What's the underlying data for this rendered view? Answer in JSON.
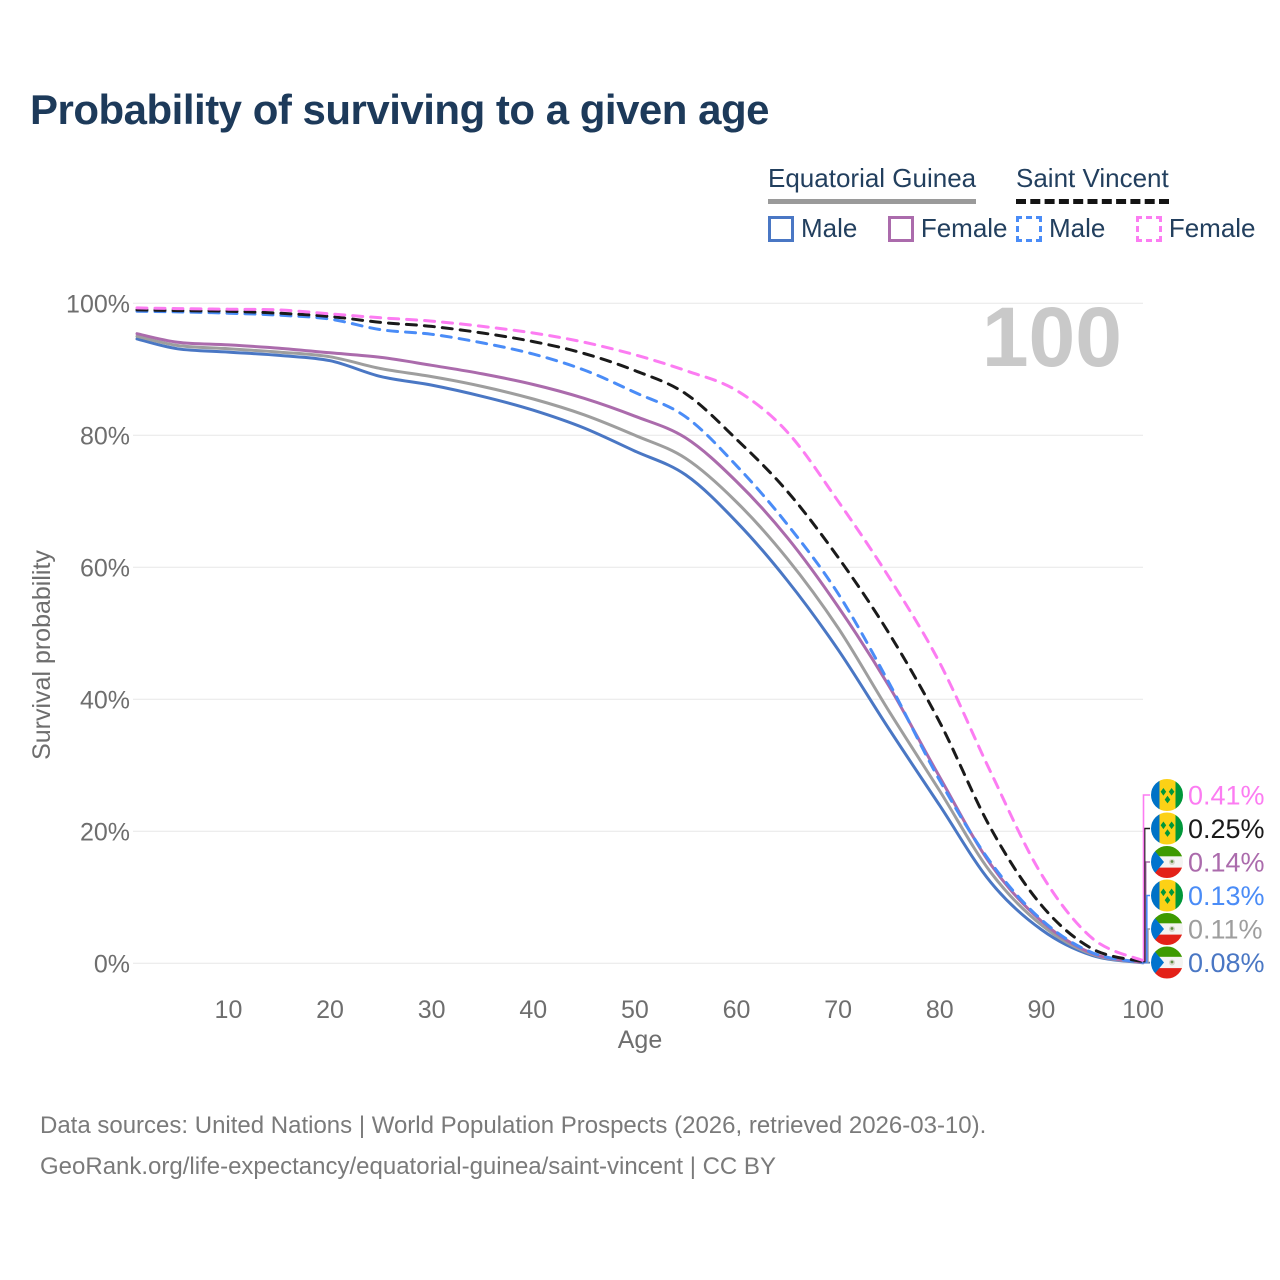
{
  "page": {
    "title": "Probability of surviving to a given age",
    "watermark_age": "100"
  },
  "legend": {
    "groups": [
      {
        "title": "Equatorial Guinea",
        "style": "solid",
        "underline_color": "#9a9a9a",
        "items": [
          {
            "label": "Male",
            "color": "#4a77c4"
          },
          {
            "label": "Female",
            "color": "#ab6bac"
          }
        ]
      },
      {
        "title": "Saint Vincent",
        "style": "dashed",
        "underline_color": "#141414",
        "items": [
          {
            "label": "Male",
            "color": "#4a8cf7"
          },
          {
            "label": "Female",
            "color": "#fc7cf2"
          }
        ]
      }
    ]
  },
  "chart_data": {
    "type": "line",
    "title": "Probability of surviving to a given age",
    "xlabel": "Age",
    "ylabel": "Survival probability",
    "xlim": [
      1,
      100
    ],
    "ylim": [
      0,
      100
    ],
    "grid": "horizontal",
    "xticks": [
      10,
      20,
      30,
      40,
      50,
      60,
      70,
      80,
      90,
      100
    ],
    "yticks": [
      0,
      20,
      40,
      60,
      80,
      100
    ],
    "ytick_suffix": "%",
    "x": [
      1,
      5,
      10,
      15,
      20,
      25,
      30,
      35,
      40,
      45,
      50,
      55,
      60,
      65,
      70,
      75,
      80,
      85,
      90,
      95,
      100
    ],
    "series": [
      {
        "id": "equatorial-guinea-male",
        "name": "Equatorial Guinea – Male",
        "country": "equatorial-guinea",
        "line": "solid",
        "color": "#4a77c4",
        "end_label": "0.08%",
        "row": 5,
        "values": [
          94.6,
          93.1,
          92.6,
          92.1,
          91.3,
          88.9,
          87.6,
          85.9,
          83.8,
          81.1,
          77.6,
          74.0,
          66.9,
          58.0,
          47.5,
          35.5,
          23.9,
          12.3,
          5.1,
          1.2,
          0.08
        ]
      },
      {
        "id": "equatorial-guinea-both",
        "name": "Equatorial Guinea",
        "country": "equatorial-guinea",
        "line": "solid",
        "color": "#9e9e9e",
        "end_label": "0.11%",
        "row": 4,
        "values": [
          95.0,
          93.6,
          93.1,
          92.6,
          91.9,
          90.1,
          88.9,
          87.4,
          85.5,
          83.1,
          80.0,
          76.5,
          69.9,
          61.3,
          50.8,
          38.2,
          26.1,
          13.8,
          5.8,
          1.35,
          0.11
        ]
      },
      {
        "id": "equatorial-guinea-female",
        "name": "Equatorial Guinea – Female",
        "country": "equatorial-guinea",
        "line": "solid",
        "color": "#ab6bac",
        "end_label": "0.14%",
        "row": 2,
        "values": [
          95.4,
          94.1,
          93.7,
          93.2,
          92.5,
          91.8,
          90.6,
          89.3,
          87.7,
          85.6,
          82.9,
          79.6,
          73.0,
          64.5,
          54.0,
          42.0,
          28.2,
          15.0,
          6.4,
          1.5,
          0.14
        ]
      },
      {
        "id": "saint-vincent-male",
        "name": "Saint Vincent – Male",
        "country": "saint-vincent",
        "line": "dashed",
        "color": "#4a8cf7",
        "end_label": "0.13%",
        "row": 3,
        "values": [
          98.8,
          98.7,
          98.5,
          98.2,
          97.6,
          96.0,
          95.3,
          94.0,
          92.3,
          89.9,
          86.5,
          82.8,
          75.4,
          66.5,
          56.0,
          42.5,
          27.7,
          15.3,
          6.6,
          1.6,
          0.13
        ]
      },
      {
        "id": "saint-vincent-both",
        "name": "Saint Vincent",
        "country": "saint-vincent",
        "line": "dashed",
        "color": "#1a1a1a",
        "end_label": "0.25%",
        "row": 1,
        "values": [
          99.0,
          98.9,
          98.8,
          98.5,
          98.0,
          97.1,
          96.5,
          95.5,
          94.2,
          92.4,
          89.8,
          86.3,
          79.4,
          71.5,
          61.5,
          50.0,
          36.5,
          20.5,
          8.8,
          2.2,
          0.25
        ]
      },
      {
        "id": "saint-vincent-female",
        "name": "Saint Vincent – Female",
        "country": "saint-vincent",
        "line": "dashed",
        "color": "#fc7cf2",
        "end_label": "0.41%",
        "row": 0,
        "values": [
          99.3,
          99.2,
          99.1,
          99.0,
          98.4,
          97.8,
          97.3,
          96.5,
          95.5,
          94.1,
          92.2,
          89.8,
          86.8,
          80.5,
          70.0,
          58.5,
          45.5,
          29.0,
          13.5,
          3.8,
          0.41
        ]
      }
    ]
  },
  "flags": {
    "saint_vincent": {
      "blue": "#0072C6",
      "yellow": "#FCD116",
      "green": "#009739"
    },
    "equatorial_guinea": {
      "green": "#3E9A00",
      "white": "#f4f4f2",
      "red": "#E32118",
      "blue": "#0073CE"
    }
  },
  "footer": {
    "line1": "Data sources: United Nations | World Population Prospects (2026, retrieved 2026-03-10).",
    "line2": "GeoRank.org/life-expectancy/equatorial-guinea/saint-vincent | CC BY"
  }
}
